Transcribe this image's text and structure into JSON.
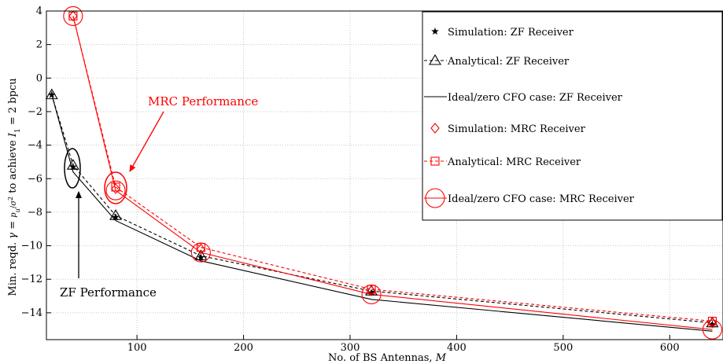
{
  "chart_data": {
    "type": "line",
    "xlabel": "No. of BS Antennas, M",
    "ylabel": "Min. reqd. γ = pu/σ² to achieve I1 = 2 bpcu",
    "xlim": [
      15,
      650
    ],
    "ylim": [
      -15.6,
      4
    ],
    "x_ticks": [
      100,
      200,
      300,
      400,
      500,
      600
    ],
    "y_ticks": [
      4,
      2,
      0,
      -2,
      -4,
      -6,
      -8,
      -10,
      -12,
      -14
    ],
    "grid": true,
    "legend_position": "top-right",
    "series": [
      {
        "name": "Simulation: ZF Receiver",
        "color": "#000000",
        "line": "none",
        "marker": "star",
        "x": [
          20,
          40,
          80,
          160,
          320,
          640
        ],
        "y": [
          -1.0,
          -5.3,
          -8.3,
          -10.7,
          -12.8,
          -14.7
        ]
      },
      {
        "name": "Analytical: ZF Receiver",
        "color": "#000000",
        "line": "dashed",
        "marker": "triangle",
        "x": [
          20,
          40,
          80,
          160,
          320,
          640
        ],
        "y": [
          -1.0,
          -5.2,
          -8.2,
          -10.6,
          -12.7,
          -14.6
        ]
      },
      {
        "name": "Ideal/zero CFO case: ZF Receiver",
        "color": "#000000",
        "line": "solid",
        "marker": "none",
        "x": [
          20,
          40,
          80,
          160,
          320,
          640
        ],
        "y": [
          -1.0,
          -5.6,
          -8.5,
          -10.9,
          -13.2,
          -15.1
        ]
      },
      {
        "name": "Simulation: MRC Receiver",
        "color": "#ff0000",
        "line": "none",
        "marker": "diamond",
        "x": [
          40,
          80,
          160,
          320,
          640
        ],
        "y": [
          3.7,
          -6.6,
          -10.2,
          -12.7,
          -14.6
        ]
      },
      {
        "name": "Analytical: MRC Receiver",
        "color": "#ff0000",
        "line": "dashed",
        "marker": "square",
        "x": [
          40,
          80,
          160,
          320,
          640
        ],
        "y": [
          3.7,
          -6.5,
          -10.1,
          -12.6,
          -14.5
        ]
      },
      {
        "name": "Ideal/zero CFO case: MRC Receiver",
        "color": "#ff0000",
        "line": "solid",
        "marker": "circle",
        "x": [
          40,
          80,
          160,
          320,
          640
        ],
        "y": [
          3.7,
          -6.7,
          -10.4,
          -12.9,
          -15.0
        ]
      }
    ],
    "annotations": [
      {
        "text": "MRC Performance",
        "color": "#ff0000"
      },
      {
        "text": "ZF Performance",
        "color": "#000000"
      }
    ]
  }
}
